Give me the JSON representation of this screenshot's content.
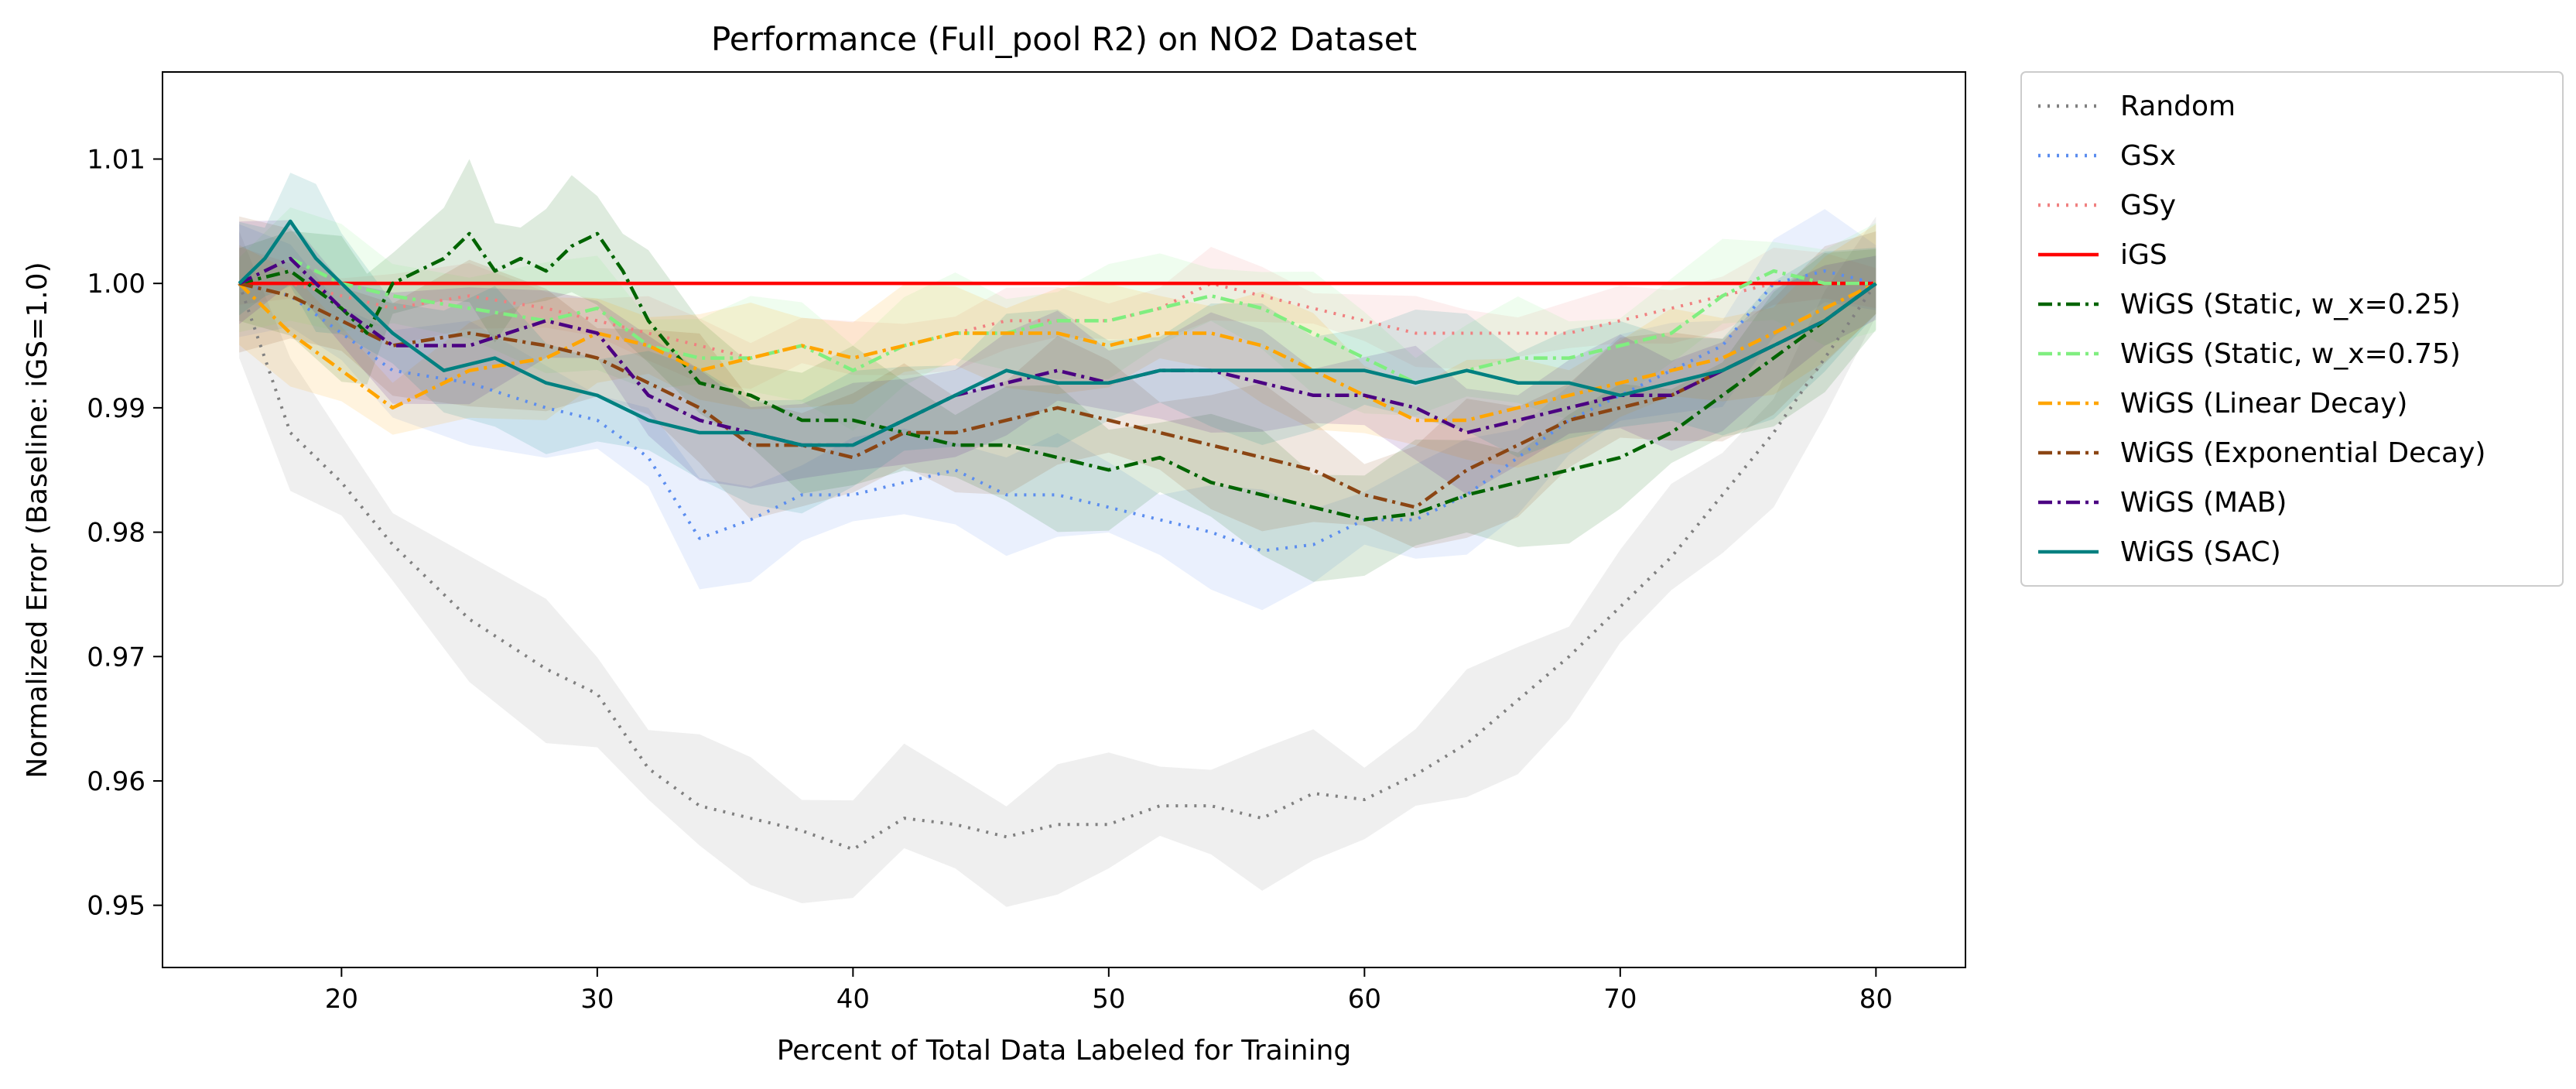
{
  "chart_data": {
    "type": "line",
    "title": "Performance (Full_pool R2) on NO2 Dataset",
    "xlabel": "Percent of Total Data Labeled for Training",
    "ylabel": "Normalized Error (Baseline: iGS=1.0)",
    "xlim": [
      13,
      83.5
    ],
    "ylim": [
      0.945,
      1.017
    ],
    "xticks": [
      20,
      30,
      40,
      50,
      60,
      70,
      80
    ],
    "yticks": [
      0.95,
      0.96,
      0.97,
      0.98,
      0.99,
      1.0,
      1.01
    ],
    "ytick_labels": [
      "0.95",
      "0.96",
      "0.97",
      "0.98",
      "0.99",
      "1.00",
      "1.01"
    ],
    "grid": false,
    "legend_position": "outside-right-top",
    "series": [
      {
        "name": "Random",
        "color": "#808080",
        "dash": "dotted",
        "x": [
          16,
          18,
          20,
          22,
          25,
          28,
          30,
          32,
          34,
          36,
          38,
          40,
          42,
          44,
          46,
          48,
          50,
          52,
          54,
          56,
          58,
          60,
          62,
          64,
          66,
          68,
          70,
          72,
          74,
          76,
          78,
          80
        ],
        "y": [
          1.0,
          0.988,
          0.984,
          0.979,
          0.973,
          0.969,
          0.967,
          0.961,
          0.958,
          0.957,
          0.956,
          0.9545,
          0.957,
          0.9565,
          0.9555,
          0.9565,
          0.9565,
          0.958,
          0.958,
          0.957,
          0.959,
          0.9585,
          0.9605,
          0.963,
          0.9665,
          0.97,
          0.974,
          0.978,
          0.983,
          0.988,
          0.994,
          1.0
        ],
        "band": 0.006
      },
      {
        "name": "GSx",
        "color": "#5b8def",
        "dash": "dotted",
        "x": [
          16,
          18,
          20,
          22,
          25,
          28,
          30,
          32,
          34,
          36,
          38,
          40,
          42,
          44,
          46,
          48,
          50,
          52,
          54,
          56,
          58,
          60,
          62,
          64,
          66,
          68,
          70,
          72,
          74,
          76,
          78,
          80
        ],
        "y": [
          1.0,
          0.999,
          0.996,
          0.993,
          0.992,
          0.99,
          0.989,
          0.986,
          0.9795,
          0.981,
          0.983,
          0.983,
          0.984,
          0.985,
          0.983,
          0.983,
          0.982,
          0.981,
          0.98,
          0.9785,
          0.979,
          0.981,
          0.981,
          0.983,
          0.986,
          0.989,
          0.991,
          0.993,
          0.995,
          1.0,
          1.001,
          1.0
        ],
        "band": 0.005
      },
      {
        "name": "GSy",
        "color": "#f08080",
        "dash": "dotted",
        "x": [
          16,
          18,
          20,
          22,
          25,
          28,
          30,
          32,
          34,
          36,
          38,
          40,
          42,
          44,
          46,
          48,
          50,
          52,
          54,
          56,
          58,
          60,
          62,
          64,
          66,
          68,
          70,
          72,
          74,
          76,
          78,
          80
        ],
        "y": [
          1.0,
          1.0,
          0.999,
          0.998,
          0.999,
          0.998,
          0.997,
          0.996,
          0.995,
          0.994,
          0.995,
          0.994,
          0.995,
          0.996,
          0.997,
          0.997,
          0.997,
          0.998,
          1.0,
          0.999,
          0.998,
          0.997,
          0.996,
          0.996,
          0.996,
          0.996,
          0.997,
          0.998,
          0.999,
          1.0,
          1.0,
          1.0
        ],
        "band": 0.003
      },
      {
        "name": "iGS",
        "color": "#ff0000",
        "dash": "solid",
        "x": [
          16,
          80
        ],
        "y": [
          1.0,
          1.0
        ],
        "band": 0
      },
      {
        "name": "WiGS (Static, w_x=0.25)",
        "color": "#006400",
        "dash": "dashdot",
        "x": [
          16,
          18,
          20,
          21,
          22,
          24,
          25,
          26,
          27,
          28,
          29,
          30,
          31,
          32,
          34,
          36,
          38,
          40,
          42,
          44,
          46,
          48,
          50,
          52,
          54,
          56,
          58,
          60,
          62,
          64,
          66,
          68,
          70,
          72,
          74,
          76,
          78,
          80
        ],
        "y": [
          1.0,
          1.001,
          0.998,
          0.996,
          1.0,
          1.002,
          1.004,
          1.001,
          1.002,
          1.001,
          1.003,
          1.004,
          1.001,
          0.997,
          0.992,
          0.991,
          0.989,
          0.989,
          0.988,
          0.987,
          0.987,
          0.986,
          0.985,
          0.986,
          0.984,
          0.983,
          0.982,
          0.981,
          0.9815,
          0.983,
          0.984,
          0.985,
          0.986,
          0.988,
          0.991,
          0.994,
          0.997,
          1.0
        ],
        "band": 0.006
      },
      {
        "name": "WiGS (Static, w_x=0.75)",
        "color": "#80ee80",
        "dash": "dashdot",
        "x": [
          16,
          18,
          20,
          22,
          25,
          28,
          30,
          32,
          34,
          36,
          38,
          40,
          42,
          44,
          46,
          48,
          50,
          52,
          54,
          56,
          58,
          60,
          62,
          64,
          66,
          68,
          70,
          72,
          74,
          76,
          78,
          80
        ],
        "y": [
          1.0,
          1.002,
          1.0,
          0.999,
          0.998,
          0.997,
          0.998,
          0.995,
          0.994,
          0.994,
          0.995,
          0.993,
          0.995,
          0.996,
          0.996,
          0.997,
          0.997,
          0.998,
          0.999,
          0.998,
          0.996,
          0.994,
          0.992,
          0.993,
          0.994,
          0.994,
          0.995,
          0.996,
          0.999,
          1.001,
          1.0,
          1.0
        ],
        "band": 0.005
      },
      {
        "name": "WiGS (Linear Decay)",
        "color": "#ffa500",
        "dash": "dashdot",
        "x": [
          16,
          18,
          20,
          22,
          25,
          28,
          30,
          32,
          34,
          36,
          38,
          40,
          42,
          44,
          46,
          48,
          50,
          52,
          54,
          56,
          58,
          60,
          62,
          64,
          66,
          68,
          70,
          72,
          74,
          76,
          78,
          80
        ],
        "y": [
          1.0,
          0.996,
          0.993,
          0.99,
          0.993,
          0.994,
          0.996,
          0.995,
          0.993,
          0.994,
          0.995,
          0.994,
          0.995,
          0.996,
          0.996,
          0.996,
          0.995,
          0.996,
          0.996,
          0.995,
          0.993,
          0.991,
          0.989,
          0.989,
          0.99,
          0.991,
          0.992,
          0.993,
          0.994,
          0.996,
          0.998,
          1.0
        ],
        "band": 0.005
      },
      {
        "name": "WiGS (Exponential Decay)",
        "color": "#8b4513",
        "dash": "dashdot",
        "x": [
          16,
          18,
          20,
          22,
          25,
          28,
          30,
          32,
          34,
          36,
          38,
          40,
          42,
          44,
          46,
          48,
          50,
          52,
          54,
          56,
          58,
          60,
          62,
          64,
          66,
          68,
          70,
          72,
          74,
          76,
          78,
          80
        ],
        "y": [
          1.0,
          0.999,
          0.997,
          0.995,
          0.996,
          0.995,
          0.994,
          0.992,
          0.99,
          0.987,
          0.987,
          0.986,
          0.988,
          0.988,
          0.989,
          0.99,
          0.989,
          0.988,
          0.987,
          0.986,
          0.985,
          0.983,
          0.982,
          0.985,
          0.987,
          0.989,
          0.99,
          0.991,
          0.993,
          0.995,
          0.997,
          1.0
        ],
        "band": 0.006
      },
      {
        "name": "WiGS (MAB)",
        "color": "#4b0082",
        "dash": "dashdot",
        "x": [
          16,
          18,
          20,
          22,
          25,
          28,
          30,
          32,
          34,
          36,
          38,
          40,
          42,
          44,
          46,
          48,
          50,
          52,
          54,
          56,
          58,
          60,
          62,
          64,
          66,
          68,
          70,
          72,
          74,
          76,
          78,
          80
        ],
        "y": [
          1.0,
          1.002,
          0.998,
          0.995,
          0.995,
          0.997,
          0.996,
          0.991,
          0.989,
          0.988,
          0.987,
          0.987,
          0.989,
          0.991,
          0.992,
          0.993,
          0.992,
          0.993,
          0.993,
          0.992,
          0.991,
          0.991,
          0.99,
          0.988,
          0.989,
          0.99,
          0.991,
          0.991,
          0.993,
          0.995,
          0.997,
          1.0
        ],
        "band": 0.005
      },
      {
        "name": "WiGS (SAC)",
        "color": "#008080",
        "dash": "solid",
        "x": [
          16,
          17,
          18,
          19,
          20,
          22,
          24,
          26,
          28,
          30,
          32,
          34,
          36,
          38,
          40,
          42,
          44,
          46,
          48,
          50,
          52,
          54,
          56,
          58,
          60,
          62,
          64,
          66,
          68,
          70,
          72,
          74,
          76,
          78,
          80
        ],
        "y": [
          1.0,
          1.002,
          1.005,
          1.002,
          1.0,
          0.996,
          0.993,
          0.994,
          0.992,
          0.991,
          0.989,
          0.988,
          0.988,
          0.987,
          0.987,
          0.989,
          0.991,
          0.993,
          0.992,
          0.992,
          0.993,
          0.993,
          0.993,
          0.993,
          0.993,
          0.992,
          0.993,
          0.992,
          0.992,
          0.991,
          0.992,
          0.993,
          0.995,
          0.997,
          1.0
        ],
        "band": 0.006
      }
    ]
  }
}
